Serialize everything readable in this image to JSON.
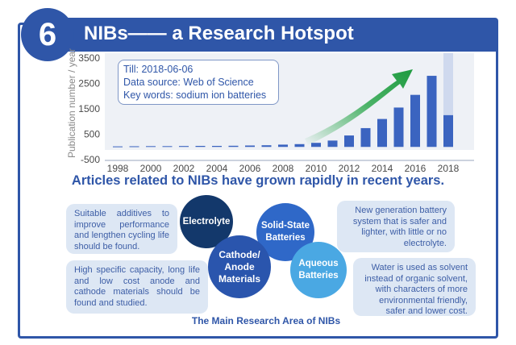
{
  "header": {
    "number": "6",
    "title": "NIBs—— a Research Hotspot"
  },
  "info_box": {
    "line1": "Till: 2018-06-06",
    "line2": "Data source: Web of Science",
    "line3": "Key words: sodium ion batteries"
  },
  "subtitle": "Articles related to NIBs have grown rapidly in recent years.",
  "circles": {
    "electrolyte": "Electrolyte",
    "solid_state": "Solid-State Batteries",
    "cathode_anode": "Cathode/ Anode Materials",
    "aqueous": "Aqueous Batteries"
  },
  "notes": {
    "top_left": "Suitable additives to improve performance and lengthen cycling life should be found.",
    "bottom_left": "High specific capacity, long life and low cost anode and cathode materials should be found and studied.",
    "top_right": "New generation battery system that is safer and lighter, with little or no electrolyte.",
    "bottom_right": "Water is used as solvent instead of organic solvent, with characters of more environmental friendly, safer and lower cost."
  },
  "caption": "The Main Research Area of NIBs",
  "colors": {
    "brand_blue": "#2f56a8",
    "bar_blue": "#3b64c0",
    "projection_bar": "#cfd9ee",
    "arrow_green": "#2fa84f"
  },
  "chart_data": {
    "type": "bar",
    "ylabel": "Publication number / year",
    "xlabel": "",
    "ylim": [
      -500,
      3500
    ],
    "yticks": [
      -500,
      500,
      1500,
      2500,
      3500
    ],
    "xtick_labels": [
      "1998",
      "2000",
      "2002",
      "2004",
      "2006",
      "2008",
      "2010",
      "2012",
      "2014",
      "2016",
      "2018"
    ],
    "categories": [
      "1998",
      "1999",
      "2000",
      "2001",
      "2002",
      "2003",
      "2004",
      "2005",
      "2006",
      "2007",
      "2008",
      "2009",
      "2010",
      "2011",
      "2012",
      "2013",
      "2014",
      "2015",
      "2016",
      "2017",
      "2018"
    ],
    "values": [
      20,
      25,
      30,
      30,
      35,
      40,
      40,
      45,
      55,
      65,
      90,
      110,
      160,
      250,
      450,
      740,
      1100,
      1550,
      2050,
      2800,
      1250
    ],
    "projected_2018_total": 3700,
    "trend_arrow": "rising"
  }
}
